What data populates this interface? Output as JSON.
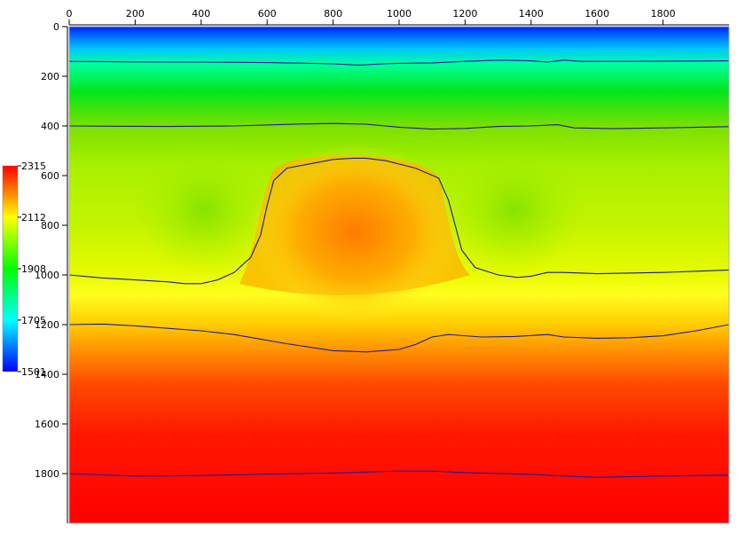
{
  "chart_data": {
    "type": "heatmap",
    "title": "",
    "xlabel": "",
    "ylabel": "",
    "x_axis_position": "top",
    "xlim": [
      0,
      2000
    ],
    "ylim": [
      0,
      2000
    ],
    "y_inverted": true,
    "x_tick_labels": [
      "0",
      "200",
      "400",
      "600",
      "800",
      "1000",
      "1200",
      "1400",
      "1600",
      "1800"
    ],
    "x_ticks": [
      0,
      200,
      400,
      600,
      800,
      1000,
      1200,
      1400,
      1600,
      1800
    ],
    "y_tick_labels": [
      "0",
      "200",
      "400",
      "600",
      "800",
      "1000",
      "1200",
      "1400",
      "1600",
      "1800"
    ],
    "y_ticks": [
      0,
      200,
      400,
      600,
      800,
      1000,
      1200,
      1400,
      1600,
      1800
    ],
    "colorbar": {
      "min": 1501,
      "max": 2315,
      "tick_values": [
        2315,
        2112,
        1908,
        1705,
        1501
      ],
      "tick_labels": [
        "2315",
        "2112",
        "1908",
        "1705",
        "1501"
      ],
      "colors": [
        "#0000ff",
        "#00ffff",
        "#00ff00",
        "#ffff00",
        "#ff0000"
      ]
    },
    "contour_color": "#1a1aa6",
    "contours": [
      {
        "points": [
          [
            0,
            140
          ],
          [
            200,
            142
          ],
          [
            400,
            143
          ],
          [
            600,
            145
          ],
          [
            700,
            147
          ],
          [
            800,
            150
          ],
          [
            880,
            155
          ],
          [
            950,
            150
          ],
          [
            1000,
            148
          ],
          [
            1100,
            146
          ],
          [
            1200,
            140
          ],
          [
            1300,
            135
          ],
          [
            1400,
            138
          ],
          [
            1450,
            143
          ],
          [
            1500,
            135
          ],
          [
            1550,
            140
          ],
          [
            1700,
            140
          ],
          [
            2000,
            138
          ]
        ]
      },
      {
        "points": [
          [
            0,
            400
          ],
          [
            300,
            402
          ],
          [
            500,
            400
          ],
          [
            700,
            392
          ],
          [
            800,
            390
          ],
          [
            900,
            393
          ],
          [
            1000,
            405
          ],
          [
            1100,
            413
          ],
          [
            1200,
            410
          ],
          [
            1300,
            402
          ],
          [
            1400,
            400
          ],
          [
            1480,
            395
          ],
          [
            1530,
            408
          ],
          [
            1650,
            411
          ],
          [
            1800,
            408
          ],
          [
            2000,
            403
          ]
        ]
      },
      {
        "points": [
          [
            0,
            1000
          ],
          [
            100,
            1012
          ],
          [
            200,
            1020
          ],
          [
            300,
            1028
          ],
          [
            350,
            1035
          ],
          [
            400,
            1035
          ],
          [
            450,
            1020
          ],
          [
            500,
            990
          ],
          [
            550,
            930
          ],
          [
            580,
            840
          ],
          [
            600,
            720
          ],
          [
            620,
            620
          ],
          [
            660,
            570
          ],
          [
            720,
            555
          ],
          [
            800,
            535
          ],
          [
            860,
            530
          ],
          [
            900,
            530
          ],
          [
            960,
            540
          ],
          [
            1050,
            570
          ],
          [
            1120,
            610
          ],
          [
            1150,
            700
          ],
          [
            1170,
            800
          ],
          [
            1190,
            900
          ],
          [
            1230,
            970
          ],
          [
            1300,
            1000
          ],
          [
            1360,
            1010
          ],
          [
            1400,
            1005
          ],
          [
            1450,
            990
          ],
          [
            1500,
            990
          ],
          [
            1600,
            995
          ],
          [
            1800,
            990
          ],
          [
            2000,
            980
          ]
        ]
      },
      {
        "points": [
          [
            0,
            1200
          ],
          [
            100,
            1198
          ],
          [
            200,
            1205
          ],
          [
            400,
            1225
          ],
          [
            500,
            1240
          ],
          [
            650,
            1275
          ],
          [
            800,
            1305
          ],
          [
            900,
            1310
          ],
          [
            1000,
            1300
          ],
          [
            1050,
            1280
          ],
          [
            1100,
            1250
          ],
          [
            1150,
            1240
          ],
          [
            1250,
            1250
          ],
          [
            1350,
            1248
          ],
          [
            1450,
            1240
          ],
          [
            1500,
            1250
          ],
          [
            1600,
            1255
          ],
          [
            1700,
            1253
          ],
          [
            1800,
            1245
          ],
          [
            1900,
            1225
          ],
          [
            2000,
            1200
          ]
        ]
      },
      {
        "points": [
          [
            0,
            1800
          ],
          [
            200,
            1810
          ],
          [
            400,
            1808
          ],
          [
            600,
            1802
          ],
          [
            800,
            1798
          ],
          [
            1000,
            1790
          ],
          [
            1100,
            1790
          ],
          [
            1200,
            1796
          ],
          [
            1400,
            1803
          ],
          [
            1500,
            1810
          ],
          [
            1600,
            1815
          ],
          [
            1800,
            1810
          ],
          [
            2000,
            1806
          ]
        ]
      }
    ]
  }
}
